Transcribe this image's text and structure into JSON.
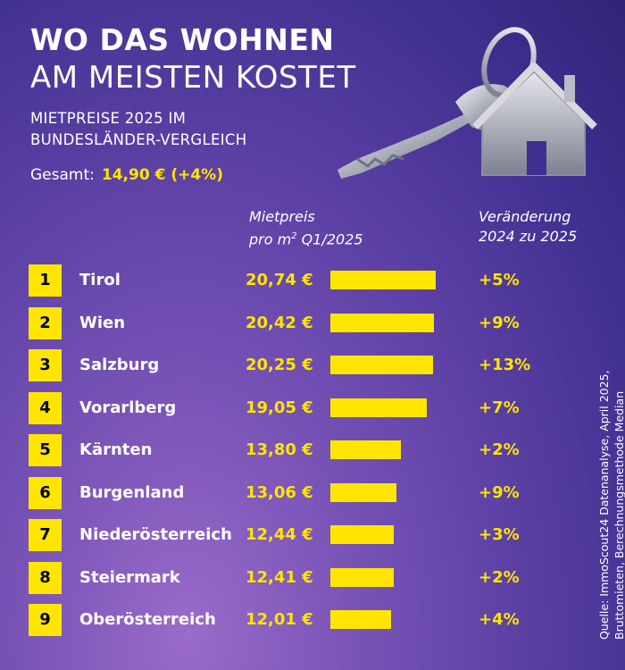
{
  "header": {
    "title_line1": "WO DAS WOHNEN",
    "title_line2": "AM MEISTEN KOSTET",
    "subtitle_line1": "MIETPREISE 2025 IM",
    "subtitle_line2": "BUNDESLÄNDER-VERGLEICH",
    "total_label": "Gesamt:",
    "total_value": "14,90 € (+4%)"
  },
  "columns": {
    "price_line1": "Mietpreis",
    "price_line2_pre": "pro m",
    "price_line2_sup": "2",
    "price_line2_post": " Q1/2025",
    "change_line1": "Veränderung",
    "change_line2": "2024 zu 2025"
  },
  "source": {
    "line1": "Quelle: ImmoScout24 Datenanalyse, April 2025,",
    "line2": "Bruttomieten, Berechnungsmethode Median"
  },
  "colors": {
    "accent": "#ffe500",
    "background": "#4a3596"
  },
  "icons": [
    "house-keychain-icon"
  ],
  "chart_data": {
    "type": "bar",
    "categories": [
      "Tirol",
      "Wien",
      "Salzburg",
      "Vorarlberg",
      "Kärnten",
      "Burgenland",
      "Niederösterreich",
      "Steiermark",
      "Oberösterreich"
    ],
    "ranks": [
      "1",
      "2",
      "3",
      "4",
      "5",
      "6",
      "7",
      "8",
      "9"
    ],
    "values": [
      20.74,
      20.42,
      20.25,
      19.05,
      13.8,
      13.06,
      12.44,
      12.41,
      12.01
    ],
    "value_labels": [
      "20,74 €",
      "20,42 €",
      "20,25 €",
      "19,05 €",
      "13,80 €",
      "13,06 €",
      "12,44 €",
      "12,41 €",
      "12,01 €"
    ],
    "changes": [
      "+5%",
      "+9%",
      "+13%",
      "+7%",
      "+2%",
      "+9%",
      "+3%",
      "+2%",
      "+4%"
    ]
  }
}
